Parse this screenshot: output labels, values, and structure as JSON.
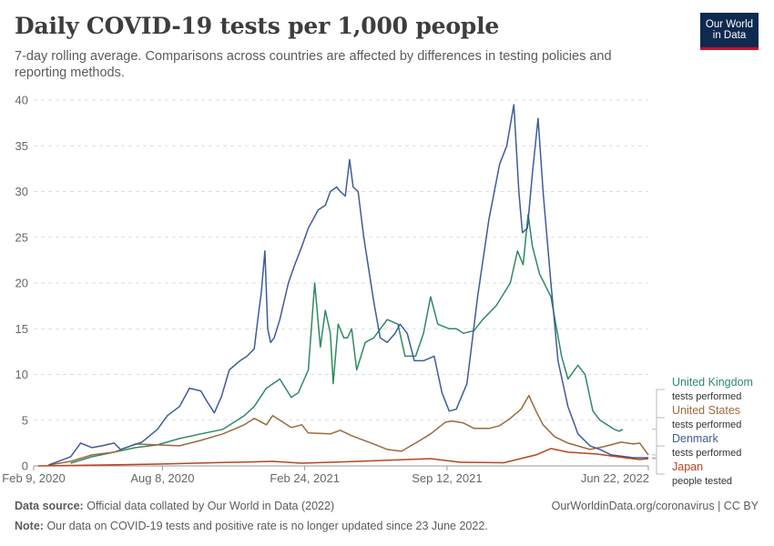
{
  "header": {
    "title": "Daily COVID-19 tests per 1,000 people",
    "subtitle": "7-day rolling average. Comparisons across countries are affected by differences in testing policies and reporting methods."
  },
  "logo": {
    "line1": "Our World",
    "line2": "in Data",
    "bg_color": "#0f2a4f",
    "accent_color": "#c8102e"
  },
  "footer": {
    "source_label": "Data source:",
    "source_text": "Official data collated by Our World in Data (2022)",
    "url": "OurWorldinData.org/coronavirus | CC BY",
    "note_label": "Note:",
    "note_text": "Our data on COVID-19 tests and positive rate is no longer updated since 23 June 2022."
  },
  "chart_data": {
    "type": "line",
    "title": "Daily COVID-19 tests per 1,000 people",
    "xlabel": "",
    "ylabel": "",
    "x_domain": [
      "2020-02-09",
      "2022-06-22"
    ],
    "x_ticks": [
      {
        "date": "2020-02-09",
        "label": "Feb 9, 2020"
      },
      {
        "date": "2020-08-08",
        "label": "Aug 8, 2020"
      },
      {
        "date": "2021-02-24",
        "label": "Feb 24, 2021"
      },
      {
        "date": "2021-09-12",
        "label": "Sep 12, 2021"
      },
      {
        "date": "2022-06-22",
        "label": "Jun 22, 2022"
      }
    ],
    "y_ticks": [
      0,
      5,
      10,
      15,
      20,
      25,
      30,
      35,
      40
    ],
    "ylim": [
      0,
      40
    ],
    "grid": "horizontal dashed",
    "legend": "right, end of lines",
    "series": [
      {
        "name": "United Kingdom",
        "sublabel": "tests performed",
        "color": "#2f8a62",
        "points": [
          [
            "2020-04-01",
            0.3
          ],
          [
            "2020-05-01",
            1.0
          ],
          [
            "2020-06-01",
            1.5
          ],
          [
            "2020-07-01",
            2.0
          ],
          [
            "2020-08-01",
            2.3
          ],
          [
            "2020-09-01",
            3.0
          ],
          [
            "2020-10-01",
            3.5
          ],
          [
            "2020-11-01",
            4.0
          ],
          [
            "2020-12-01",
            5.5
          ],
          [
            "2020-12-15",
            6.5
          ],
          [
            "2021-01-01",
            8.5
          ],
          [
            "2021-01-20",
            9.5
          ],
          [
            "2021-02-05",
            7.5
          ],
          [
            "2021-02-15",
            8.0
          ],
          [
            "2021-03-01",
            10.5
          ],
          [
            "2021-03-10",
            20.0
          ],
          [
            "2021-03-18",
            13.0
          ],
          [
            "2021-03-25",
            17.0
          ],
          [
            "2021-04-01",
            14.5
          ],
          [
            "2021-04-05",
            9.0
          ],
          [
            "2021-04-12",
            15.5
          ],
          [
            "2021-04-20",
            14.0
          ],
          [
            "2021-04-25",
            14.0
          ],
          [
            "2021-05-01",
            15.0
          ],
          [
            "2021-05-08",
            10.5
          ],
          [
            "2021-05-20",
            13.5
          ],
          [
            "2021-06-01",
            14.0
          ],
          [
            "2021-06-20",
            16.0
          ],
          [
            "2021-07-05",
            15.5
          ],
          [
            "2021-07-15",
            12.0
          ],
          [
            "2021-07-30",
            12.0
          ],
          [
            "2021-08-10",
            14.5
          ],
          [
            "2021-08-20",
            18.5
          ],
          [
            "2021-08-30",
            15.5
          ],
          [
            "2021-09-15",
            15.0
          ],
          [
            "2021-09-25",
            15.0
          ],
          [
            "2021-10-05",
            14.5
          ],
          [
            "2021-10-20",
            14.8
          ],
          [
            "2021-11-01",
            16.0
          ],
          [
            "2021-11-20",
            17.5
          ],
          [
            "2021-12-10",
            20.0
          ],
          [
            "2021-12-20",
            23.5
          ],
          [
            "2021-12-28",
            22.0
          ],
          [
            "2022-01-04",
            27.5
          ],
          [
            "2022-01-10",
            24.0
          ],
          [
            "2022-01-20",
            21.0
          ],
          [
            "2022-02-05",
            18.5
          ],
          [
            "2022-02-20",
            12.0
          ],
          [
            "2022-03-01",
            9.5
          ],
          [
            "2022-03-15",
            11.0
          ],
          [
            "2022-03-25",
            10.0
          ],
          [
            "2022-04-05",
            6.0
          ],
          [
            "2022-04-15",
            5.0
          ],
          [
            "2022-04-25",
            4.5
          ],
          [
            "2022-05-05",
            4.0
          ],
          [
            "2022-05-12",
            3.8
          ],
          [
            "2022-05-17",
            4.0
          ]
        ]
      },
      {
        "name": "United States",
        "sublabel": "tests performed",
        "color": "#9b6a3c",
        "points": [
          [
            "2020-03-01",
            0.1
          ],
          [
            "2020-04-01",
            0.5
          ],
          [
            "2020-05-01",
            1.2
          ],
          [
            "2020-06-01",
            1.5
          ],
          [
            "2020-07-01",
            2.4
          ],
          [
            "2020-08-01",
            2.3
          ],
          [
            "2020-09-01",
            2.2
          ],
          [
            "2020-10-01",
            2.8
          ],
          [
            "2020-11-01",
            3.5
          ],
          [
            "2020-12-01",
            4.5
          ],
          [
            "2020-12-15",
            5.2
          ],
          [
            "2021-01-01",
            4.5
          ],
          [
            "2021-01-10",
            5.5
          ],
          [
            "2021-01-20",
            5.0
          ],
          [
            "2021-02-05",
            4.2
          ],
          [
            "2021-02-20",
            4.5
          ],
          [
            "2021-03-01",
            3.6
          ],
          [
            "2021-04-01",
            3.5
          ],
          [
            "2021-04-15",
            3.9
          ],
          [
            "2021-05-01",
            3.3
          ],
          [
            "2021-06-01",
            2.4
          ],
          [
            "2021-06-20",
            1.8
          ],
          [
            "2021-07-10",
            1.6
          ],
          [
            "2021-08-01",
            2.6
          ],
          [
            "2021-08-20",
            3.5
          ],
          [
            "2021-09-10",
            4.8
          ],
          [
            "2021-09-20",
            4.9
          ],
          [
            "2021-10-05",
            4.7
          ],
          [
            "2021-10-20",
            4.1
          ],
          [
            "2021-11-10",
            4.1
          ],
          [
            "2021-11-25",
            4.4
          ],
          [
            "2021-12-10",
            5.2
          ],
          [
            "2021-12-25",
            6.2
          ],
          [
            "2022-01-05",
            7.7
          ],
          [
            "2022-01-15",
            6.0
          ],
          [
            "2022-01-25",
            4.5
          ],
          [
            "2022-02-10",
            3.2
          ],
          [
            "2022-03-01",
            2.5
          ],
          [
            "2022-04-01",
            1.8
          ],
          [
            "2022-04-20",
            2.1
          ],
          [
            "2022-05-15",
            2.6
          ],
          [
            "2022-06-01",
            2.4
          ],
          [
            "2022-06-10",
            2.5
          ],
          [
            "2022-06-22",
            1.2
          ]
        ]
      },
      {
        "name": "Denmark",
        "sublabel": "tests performed",
        "color": "#3e5c9a",
        "points": [
          [
            "2020-03-01",
            0.1
          ],
          [
            "2020-04-01",
            1.0
          ],
          [
            "2020-04-15",
            2.5
          ],
          [
            "2020-05-01",
            2.0
          ],
          [
            "2020-05-15",
            2.2
          ],
          [
            "2020-06-01",
            2.5
          ],
          [
            "2020-06-10",
            1.8
          ],
          [
            "2020-06-25",
            2.2
          ],
          [
            "2020-07-10",
            2.6
          ],
          [
            "2020-08-01",
            4.0
          ],
          [
            "2020-08-15",
            5.5
          ],
          [
            "2020-09-01",
            6.5
          ],
          [
            "2020-09-15",
            8.5
          ],
          [
            "2020-10-01",
            8.2
          ],
          [
            "2020-10-10",
            7.0
          ],
          [
            "2020-10-20",
            5.8
          ],
          [
            "2020-10-30",
            7.6
          ],
          [
            "2020-11-10",
            10.5
          ],
          [
            "2020-11-25",
            11.5
          ],
          [
            "2020-12-05",
            12.0
          ],
          [
            "2020-12-15",
            12.8
          ],
          [
            "2020-12-20",
            16.0
          ],
          [
            "2020-12-25",
            19.0
          ],
          [
            "2020-12-30",
            23.5
          ],
          [
            "2021-01-03",
            15.0
          ],
          [
            "2021-01-07",
            13.5
          ],
          [
            "2021-01-12",
            14.0
          ],
          [
            "2021-01-20",
            16.0
          ],
          [
            "2021-02-01",
            20.0
          ],
          [
            "2021-02-10",
            22.0
          ],
          [
            "2021-02-20",
            24.0
          ],
          [
            "2021-03-01",
            26.0
          ],
          [
            "2021-03-15",
            28.0
          ],
          [
            "2021-03-25",
            28.5
          ],
          [
            "2021-04-01",
            30.0
          ],
          [
            "2021-04-10",
            30.5
          ],
          [
            "2021-04-15",
            30.0
          ],
          [
            "2021-04-22",
            29.5
          ],
          [
            "2021-04-28",
            33.5
          ],
          [
            "2021-05-03",
            30.5
          ],
          [
            "2021-05-10",
            30.0
          ],
          [
            "2021-05-18",
            25.0
          ],
          [
            "2021-06-01",
            18.0
          ],
          [
            "2021-06-10",
            14.0
          ],
          [
            "2021-06-20",
            13.5
          ],
          [
            "2021-07-01",
            14.5
          ],
          [
            "2021-07-08",
            15.5
          ],
          [
            "2021-07-18",
            14.5
          ],
          [
            "2021-07-28",
            11.5
          ],
          [
            "2021-08-10",
            11.5
          ],
          [
            "2021-08-25",
            12.0
          ],
          [
            "2021-09-05",
            8.0
          ],
          [
            "2021-09-15",
            6.0
          ],
          [
            "2021-09-25",
            6.2
          ],
          [
            "2021-10-10",
            9.0
          ],
          [
            "2021-10-25",
            18.5
          ],
          [
            "2021-11-10",
            27.0
          ],
          [
            "2021-11-25",
            33.0
          ],
          [
            "2021-12-05",
            35.0
          ],
          [
            "2021-12-15",
            39.5
          ],
          [
            "2021-12-22",
            30.0
          ],
          [
            "2021-12-27",
            25.5
          ],
          [
            "2022-01-03",
            26.0
          ],
          [
            "2022-01-10",
            32.0
          ],
          [
            "2022-01-18",
            38.0
          ],
          [
            "2022-01-25",
            30.0
          ],
          [
            "2022-02-05",
            20.0
          ],
          [
            "2022-02-15",
            11.5
          ],
          [
            "2022-03-01",
            6.5
          ],
          [
            "2022-03-15",
            3.5
          ],
          [
            "2022-04-01",
            2.2
          ],
          [
            "2022-04-15",
            1.8
          ],
          [
            "2022-05-01",
            1.2
          ],
          [
            "2022-06-01",
            0.9
          ],
          [
            "2022-06-22",
            0.9
          ]
        ]
      },
      {
        "name": "Japan",
        "sublabel": "people tested",
        "color": "#b5461f",
        "points": [
          [
            "2020-02-15",
            0.0
          ],
          [
            "2020-04-01",
            0.05
          ],
          [
            "2020-08-01",
            0.2
          ],
          [
            "2021-01-10",
            0.5
          ],
          [
            "2021-02-20",
            0.3
          ],
          [
            "2021-05-10",
            0.5
          ],
          [
            "2021-08-20",
            0.8
          ],
          [
            "2021-10-01",
            0.4
          ],
          [
            "2021-12-01",
            0.35
          ],
          [
            "2022-01-15",
            1.2
          ],
          [
            "2022-02-05",
            1.9
          ],
          [
            "2022-03-01",
            1.5
          ],
          [
            "2022-04-10",
            1.3
          ],
          [
            "2022-05-20",
            0.9
          ],
          [
            "2022-06-10",
            0.7
          ],
          [
            "2022-06-22",
            0.8
          ]
        ]
      }
    ]
  }
}
